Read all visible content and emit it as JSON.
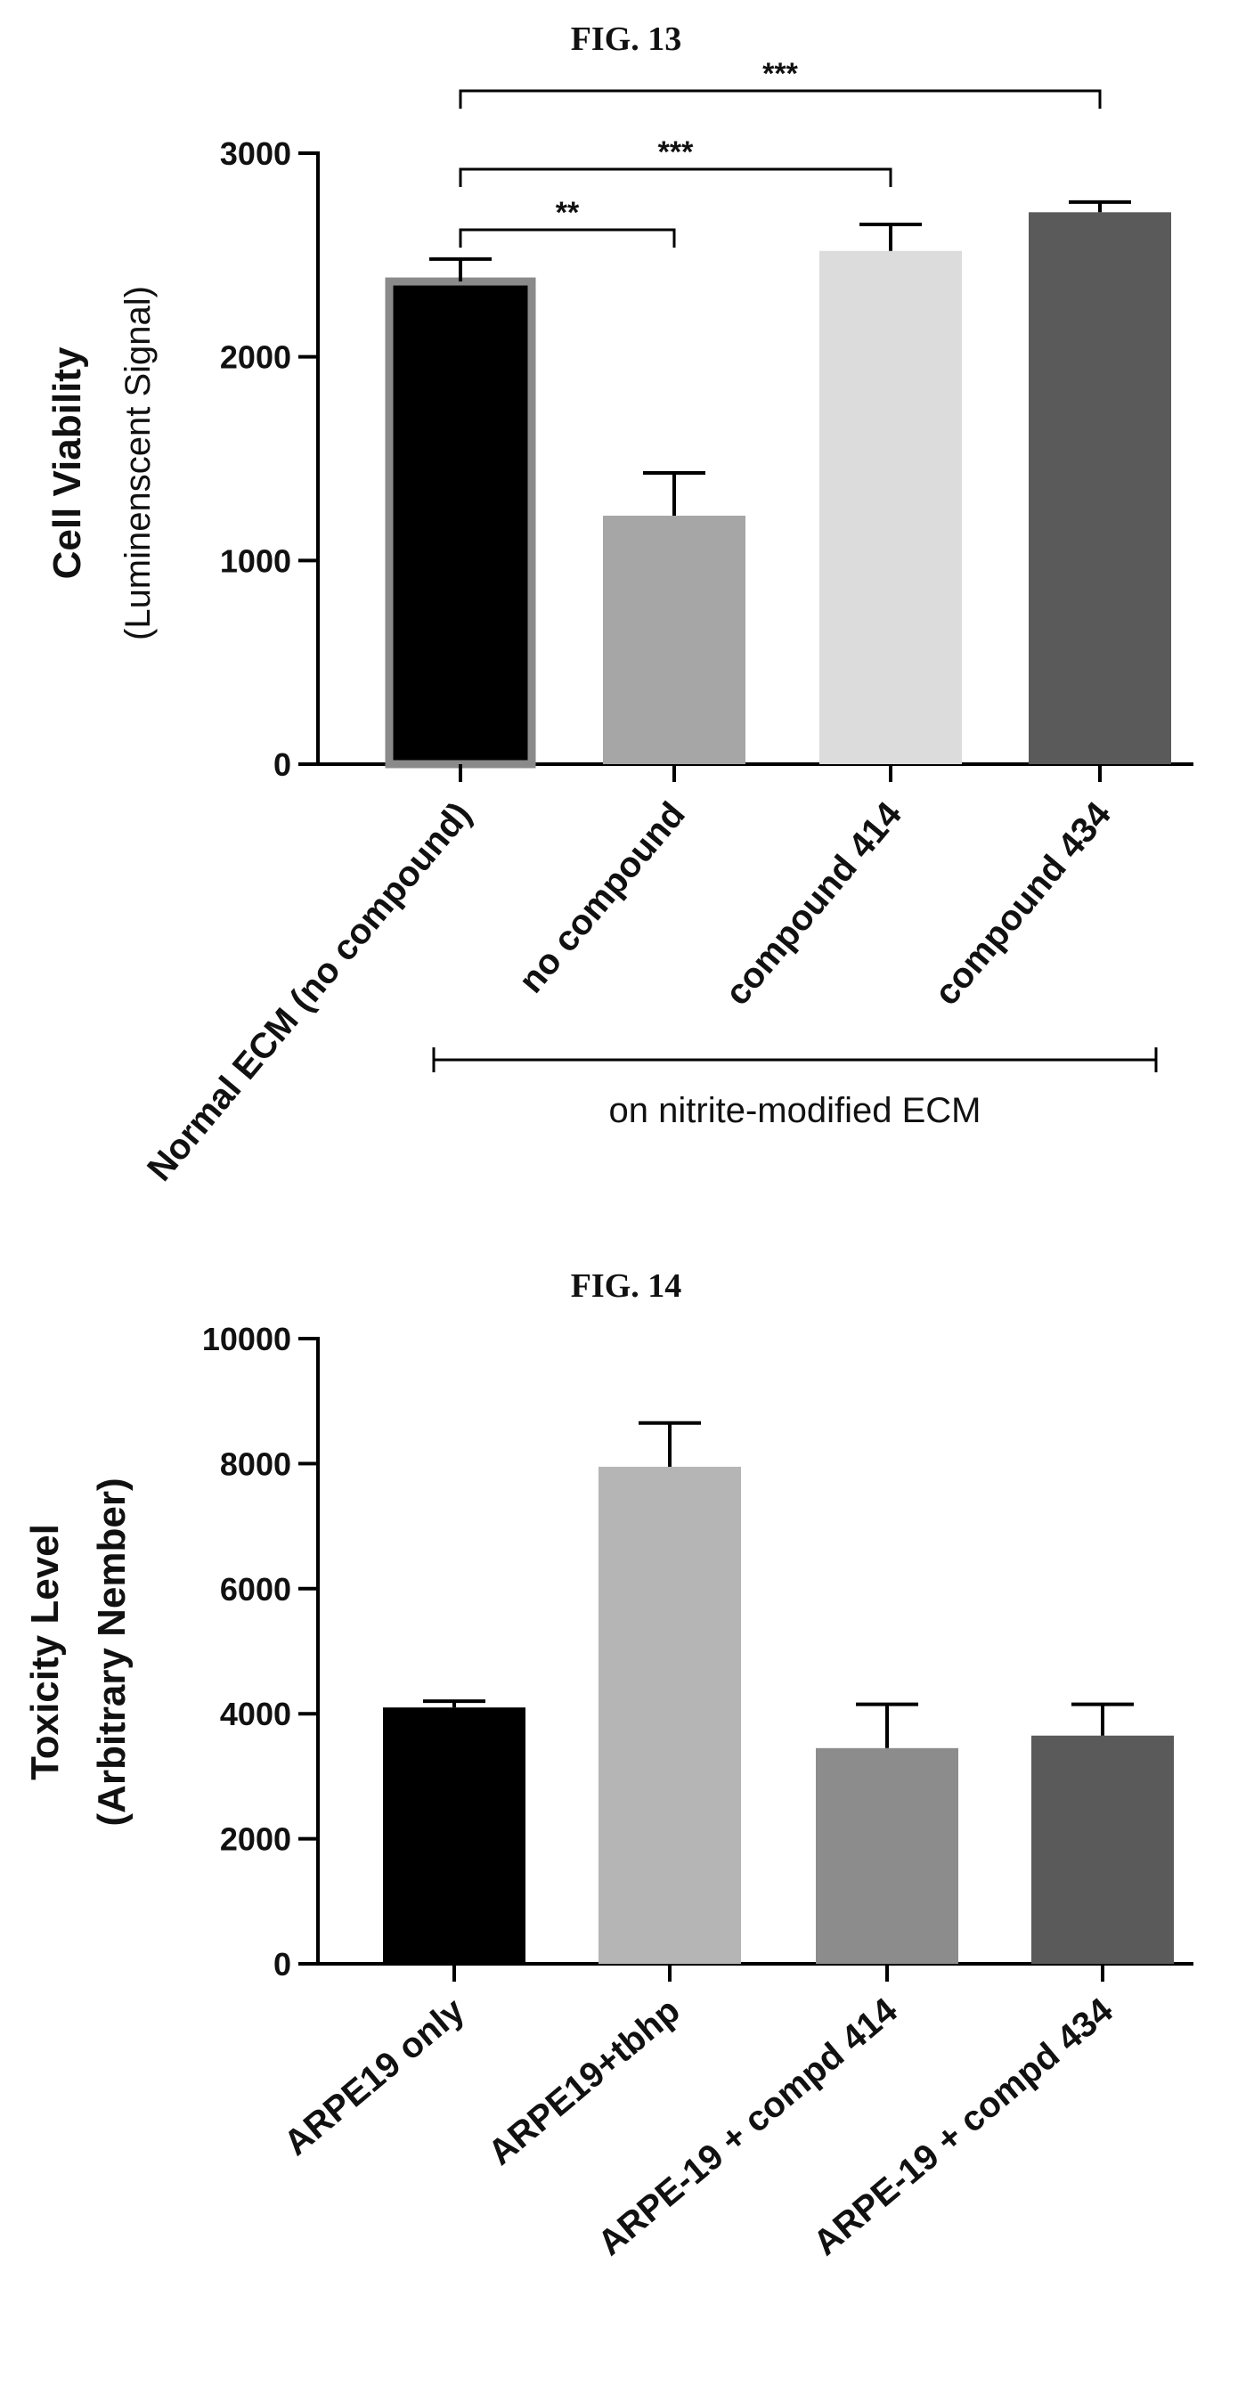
{
  "chart_data": [
    {
      "type": "bar",
      "figure_label": "FIG. 13",
      "ylabel": "Cell Viability",
      "ylabel_sub": "(Luminenscent Signal)",
      "ylim": [
        0,
        3000
      ],
      "yticks": [
        0,
        1000,
        2000,
        3000
      ],
      "categories": [
        "Normal ECM (no compound)",
        "no compound",
        "compound 414",
        "compound 434"
      ],
      "values": [
        2370,
        1220,
        2520,
        2710
      ],
      "errors": [
        110,
        210,
        130,
        50
      ],
      "colors": [
        "#000000",
        "#a6a6a6",
        "#dcdcdc",
        "#5a5a5a"
      ],
      "group_label": "on nitrite-modified ECM",
      "significance": [
        {
          "from": 0,
          "to": 1,
          "label": "**"
        },
        {
          "from": 0,
          "to": 2,
          "label": "***"
        },
        {
          "from": 0,
          "to": 3,
          "label": "***"
        }
      ]
    },
    {
      "type": "bar",
      "figure_label": "FIG. 14",
      "ylabel": "Toxicity Level",
      "ylabel_sub": "(Arbitrary Nember)",
      "ylim": [
        0,
        10000
      ],
      "yticks": [
        0,
        2000,
        4000,
        6000,
        8000,
        10000
      ],
      "categories": [
        "ARPE19 only",
        "ARPE19+tbhp",
        "ARPE-19 + compd 414",
        "ARPE-19 + compd 434"
      ],
      "values": [
        4100,
        7950,
        3450,
        3650
      ],
      "errors": [
        100,
        700,
        700,
        500
      ],
      "colors": [
        "#000000",
        "#b5b5b5",
        "#8c8c8c",
        "#5a5a5a"
      ]
    }
  ]
}
